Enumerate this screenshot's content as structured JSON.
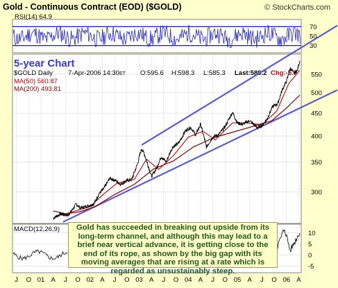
{
  "colors": {
    "frame_bg": "#ffffcc",
    "panel_bg": "#ffffff",
    "grid": "#d8d8d8",
    "price": "#000000",
    "ma50": "#cc0000",
    "ma200": "#8b0000",
    "rsi": "#2222cc",
    "trend_lines": "#5a5adc",
    "caption": "#3a3acc",
    "change_negative": "#cc0000",
    "ref_lines": "#0000aa"
  },
  "chart_data": {
    "type": "line",
    "title": "Gold - Continuous Contract (EOD) ($GOLD)",
    "watermark": "© StockCharts.com",
    "caption": "5-year Chart",
    "quote": {
      "symbol": "$GOLD Daily",
      "date": "7-Apr-2006 14:30",
      "date_suffix": "ET",
      "open": "O:595.6",
      "high": "H:598.3",
      "low": "L:585.3",
      "last": "Last:589.2",
      "change": "Chg:-5.7"
    },
    "legend": [
      {
        "name": "MA(50) 560.87",
        "color": "#cc0000"
      },
      {
        "name": "MA(200) 493.81",
        "color": "#8b0000"
      }
    ],
    "rsi": {
      "label": "RSI(14) 64.9",
      "ticks": [
        70,
        50,
        30
      ],
      "overbought": 70,
      "oversold": 30
    },
    "macd": {
      "label": "MACD(12,26,9)",
      "ticks": [
        10,
        5,
        0,
        -5
      ]
    },
    "price": {
      "log_scale": true,
      "ylim": [
        255,
        610
      ],
      "yticks": [
        550,
        500,
        450,
        400,
        350,
        300
      ],
      "series": [
        {
          "t": 2001.25,
          "v": 262
        },
        {
          "t": 2001.4,
          "v": 268
        },
        {
          "t": 2001.55,
          "v": 266
        },
        {
          "t": 2001.62,
          "v": 272
        },
        {
          "t": 2001.72,
          "v": 282
        },
        {
          "t": 2001.8,
          "v": 276
        },
        {
          "t": 2001.95,
          "v": 279
        },
        {
          "t": 2002.08,
          "v": 282
        },
        {
          "t": 2002.18,
          "v": 297
        },
        {
          "t": 2002.28,
          "v": 305
        },
        {
          "t": 2002.4,
          "v": 322
        },
        {
          "t": 2002.52,
          "v": 318
        },
        {
          "t": 2002.62,
          "v": 312
        },
        {
          "t": 2002.75,
          "v": 318
        },
        {
          "t": 2002.85,
          "v": 320
        },
        {
          "t": 2002.96,
          "v": 345
        },
        {
          "t": 2003.05,
          "v": 375
        },
        {
          "t": 2003.1,
          "v": 366
        },
        {
          "t": 2003.25,
          "v": 325
        },
        {
          "t": 2003.35,
          "v": 338
        },
        {
          "t": 2003.45,
          "v": 360
        },
        {
          "t": 2003.55,
          "v": 350
        },
        {
          "t": 2003.68,
          "v": 378
        },
        {
          "t": 2003.8,
          "v": 385
        },
        {
          "t": 2003.95,
          "v": 412
        },
        {
          "t": 2004.05,
          "v": 418
        },
        {
          "t": 2004.15,
          "v": 402
        },
        {
          "t": 2004.25,
          "v": 425
        },
        {
          "t": 2004.37,
          "v": 378
        },
        {
          "t": 2004.5,
          "v": 398
        },
        {
          "t": 2004.62,
          "v": 403
        },
        {
          "t": 2004.75,
          "v": 420
        },
        {
          "t": 2004.9,
          "v": 452
        },
        {
          "t": 2005.0,
          "v": 428
        },
        {
          "t": 2005.1,
          "v": 425
        },
        {
          "t": 2005.25,
          "v": 433
        },
        {
          "t": 2005.4,
          "v": 418
        },
        {
          "t": 2005.5,
          "v": 422
        },
        {
          "t": 2005.6,
          "v": 436
        },
        {
          "t": 2005.72,
          "v": 466
        },
        {
          "t": 2005.82,
          "v": 472
        },
        {
          "t": 2005.92,
          "v": 510
        },
        {
          "t": 2006.0,
          "v": 530
        },
        {
          "t": 2006.08,
          "v": 568
        },
        {
          "t": 2006.15,
          "v": 552
        },
        {
          "t": 2006.22,
          "v": 560
        },
        {
          "t": 2006.27,
          "v": 589
        }
      ],
      "ma50": [
        {
          "t": 2001.4,
          "v": 266
        },
        {
          "t": 2001.7,
          "v": 272
        },
        {
          "t": 2002.0,
          "v": 278
        },
        {
          "t": 2002.25,
          "v": 295
        },
        {
          "t": 2002.55,
          "v": 314
        },
        {
          "t": 2002.9,
          "v": 320
        },
        {
          "t": 2003.15,
          "v": 355
        },
        {
          "t": 2003.4,
          "v": 337
        },
        {
          "t": 2003.7,
          "v": 362
        },
        {
          "t": 2004.0,
          "v": 398
        },
        {
          "t": 2004.3,
          "v": 410
        },
        {
          "t": 2004.55,
          "v": 392
        },
        {
          "t": 2004.9,
          "v": 428
        },
        {
          "t": 2005.2,
          "v": 428
        },
        {
          "t": 2005.5,
          "v": 424
        },
        {
          "t": 2005.8,
          "v": 455
        },
        {
          "t": 2006.05,
          "v": 525
        },
        {
          "t": 2006.27,
          "v": 561
        }
      ],
      "ma200": [
        {
          "t": 2001.25,
          "v": 272
        },
        {
          "t": 2001.5,
          "v": 268
        },
        {
          "t": 2001.8,
          "v": 271
        },
        {
          "t": 2002.1,
          "v": 278
        },
        {
          "t": 2002.5,
          "v": 296
        },
        {
          "t": 2002.9,
          "v": 312
        },
        {
          "t": 2003.3,
          "v": 338
        },
        {
          "t": 2003.7,
          "v": 352
        },
        {
          "t": 2004.1,
          "v": 378
        },
        {
          "t": 2004.5,
          "v": 396
        },
        {
          "t": 2004.9,
          "v": 408
        },
        {
          "t": 2005.3,
          "v": 420
        },
        {
          "t": 2005.7,
          "v": 433
        },
        {
          "t": 2006.0,
          "v": 462
        },
        {
          "t": 2006.27,
          "v": 494
        }
      ],
      "channel_upper": [
        {
          "t": 2003.05,
          "v": 382
        },
        {
          "t": 2006.27,
          "v": 628
        }
      ],
      "channel_lower": [
        {
          "t": 2001.45,
          "v": 257
        },
        {
          "t": 2006.27,
          "v": 462
        }
      ]
    },
    "x_tick_labels": [
      "J",
      "O",
      "01",
      "A",
      "J",
      "O",
      "02",
      "A",
      "J",
      "O",
      "03",
      "A",
      "J",
      "O",
      "04",
      "A",
      "J",
      "O",
      "05",
      "A",
      "J",
      "O",
      "06",
      "A"
    ],
    "annotation": "Gold has succeeded in breaking out upside from its long-term channel, and although this may lead to a brief near vertical advance, it is getting close to the end of its rope, as shown by the big gap with its moving averages that are rising at a rate which is regarded as unsustainably steep."
  }
}
